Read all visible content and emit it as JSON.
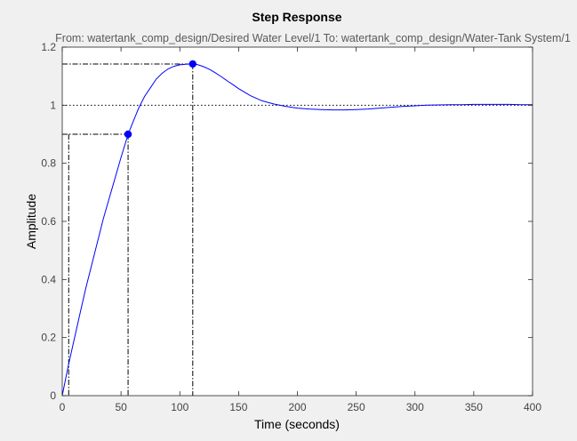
{
  "chart_data": {
    "type": "line",
    "title": "Step Response",
    "subtitle": "From: watertank_comp_design/Desired  Water Level/1  To: watertank_comp_design/Water-Tank System/1",
    "xlabel": "Time (seconds)",
    "ylabel": "Amplitude",
    "xlim": [
      0,
      400
    ],
    "ylim": [
      0,
      1.2
    ],
    "xticks": [
      0,
      50,
      100,
      150,
      200,
      250,
      300,
      350,
      400
    ],
    "xtick_labels": [
      "0",
      "50",
      "100",
      "150",
      "200",
      "250",
      "300",
      "350",
      "400"
    ],
    "yticks": [
      0,
      0.2,
      0.4,
      0.6,
      0.8,
      1,
      1.2
    ],
    "ytick_labels": [
      "0",
      "0.2",
      "0.4",
      "0.6",
      "0.8",
      "1",
      "1.2"
    ],
    "grid": false,
    "series": [
      {
        "color": "#0000ff",
        "x": [
          0,
          5,
          10,
          15,
          20,
          25,
          30,
          35,
          40,
          45,
          50,
          56,
          60,
          65,
          70,
          75,
          80,
          85,
          90,
          95,
          100,
          105,
          111,
          115,
          120,
          125,
          130,
          135,
          140,
          145,
          150,
          160,
          170,
          180,
          190,
          200,
          210,
          220,
          230,
          240,
          250,
          260,
          270,
          280,
          290,
          300,
          310,
          320,
          330,
          340,
          350,
          360,
          370,
          380,
          390,
          400
        ],
        "y": [
          0,
          0.1,
          0.19,
          0.28,
          0.37,
          0.45,
          0.53,
          0.61,
          0.68,
          0.75,
          0.82,
          0.9,
          0.94,
          0.99,
          1.03,
          1.06,
          1.09,
          1.11,
          1.125,
          1.134,
          1.139,
          1.141,
          1.142,
          1.14,
          1.133,
          1.124,
          1.112,
          1.099,
          1.085,
          1.071,
          1.057,
          1.033,
          1.015,
          1.004,
          0.996,
          0.99,
          0.987,
          0.985,
          0.984,
          0.984,
          0.985,
          0.987,
          0.99,
          0.993,
          0.996,
          0.998,
          1.0,
          1.001,
          1.002,
          1.002,
          1.003,
          1.003,
          1.003,
          1.003,
          1.002,
          1.002
        ]
      }
    ],
    "steady_state": 1,
    "markers": [
      {
        "name": "rise-time-marker",
        "x": 56,
        "y": 0.9,
        "x_start": 5.5
      },
      {
        "name": "peak-marker",
        "x": 111,
        "y": 1.142
      }
    ],
    "colors": {
      "line": "#0000ff",
      "background": "#f0f0f0",
      "plot_area": "#ffffff",
      "guide": "#000000"
    }
  }
}
